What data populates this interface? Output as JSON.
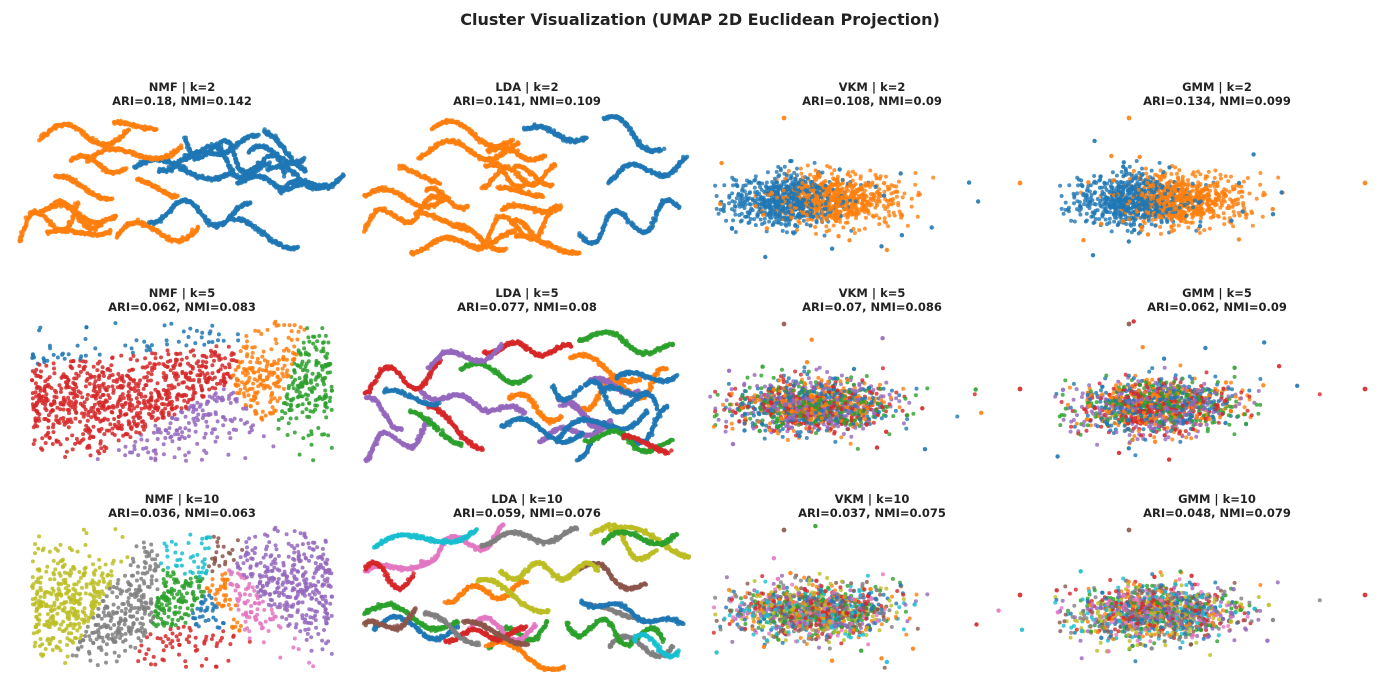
{
  "figure": {
    "title": "Cluster Visualization (UMAP 2D Euclidean Projection)",
    "palette": [
      "#1f77b4",
      "#ff7f0e",
      "#2ca02c",
      "#d62728",
      "#9467bd",
      "#8c564b",
      "#e377c2",
      "#7f7f7f",
      "#bcbd22",
      "#17becf"
    ]
  },
  "chart_data": [
    {
      "type": "scatter",
      "method": "NMF",
      "k": 2,
      "title": "NMF | k=2",
      "subtitle": "ARI=0.18, NMI=0.142",
      "ARI": 0.18,
      "NMI": 0.142,
      "embedding": "strands",
      "grid": false,
      "axes": false
    },
    {
      "type": "scatter",
      "method": "LDA",
      "k": 2,
      "title": "LDA | k=2",
      "subtitle": "ARI=0.141, NMI=0.109",
      "ARI": 0.141,
      "NMI": 0.109,
      "embedding": "strands",
      "grid": false,
      "axes": false
    },
    {
      "type": "scatter",
      "method": "VKM",
      "k": 2,
      "title": "VKM | k=2",
      "subtitle": "ARI=0.108, NMI=0.09",
      "ARI": 0.108,
      "NMI": 0.09,
      "embedding": "blob",
      "grid": false,
      "axes": false
    },
    {
      "type": "scatter",
      "method": "GMM",
      "k": 2,
      "title": "GMM | k=2",
      "subtitle": "ARI=0.134, NMI=0.099",
      "ARI": 0.134,
      "NMI": 0.099,
      "embedding": "blob",
      "grid": false,
      "axes": false
    },
    {
      "type": "scatter",
      "method": "NMF",
      "k": 5,
      "title": "NMF | k=5",
      "subtitle": "ARI=0.062, NMI=0.083",
      "ARI": 0.062,
      "NMI": 0.083,
      "embedding": "regions",
      "grid": false,
      "axes": false
    },
    {
      "type": "scatter",
      "method": "LDA",
      "k": 5,
      "title": "LDA | k=5",
      "subtitle": "ARI=0.077, NMI=0.08",
      "ARI": 0.077,
      "NMI": 0.08,
      "embedding": "strands",
      "grid": false,
      "axes": false
    },
    {
      "type": "scatter",
      "method": "VKM",
      "k": 5,
      "title": "VKM | k=5",
      "subtitle": "ARI=0.07, NMI=0.086",
      "ARI": 0.07,
      "NMI": 0.086,
      "embedding": "blob",
      "grid": false,
      "axes": false
    },
    {
      "type": "scatter",
      "method": "GMM",
      "k": 5,
      "title": "GMM | k=5",
      "subtitle": "ARI=0.062, NMI=0.09",
      "ARI": 0.062,
      "NMI": 0.09,
      "embedding": "blob",
      "grid": false,
      "axes": false
    },
    {
      "type": "scatter",
      "method": "NMF",
      "k": 10,
      "title": "NMF | k=10",
      "subtitle": "ARI=0.036, NMI=0.063",
      "ARI": 0.036,
      "NMI": 0.063,
      "embedding": "regions",
      "grid": false,
      "axes": false
    },
    {
      "type": "scatter",
      "method": "LDA",
      "k": 10,
      "title": "LDA | k=10",
      "subtitle": "ARI=0.059, NMI=0.076",
      "ARI": 0.059,
      "NMI": 0.076,
      "embedding": "strands",
      "grid": false,
      "axes": false
    },
    {
      "type": "scatter",
      "method": "VKM",
      "k": 10,
      "title": "VKM | k=10",
      "subtitle": "ARI=0.037, NMI=0.075",
      "ARI": 0.037,
      "NMI": 0.075,
      "embedding": "blob",
      "grid": false,
      "axes": false
    },
    {
      "type": "scatter",
      "method": "GMM",
      "k": 10,
      "title": "GMM | k=10",
      "subtitle": "ARI=0.048, NMI=0.079",
      "ARI": 0.048,
      "NMI": 0.079,
      "embedding": "blob",
      "grid": false,
      "axes": false
    }
  ]
}
